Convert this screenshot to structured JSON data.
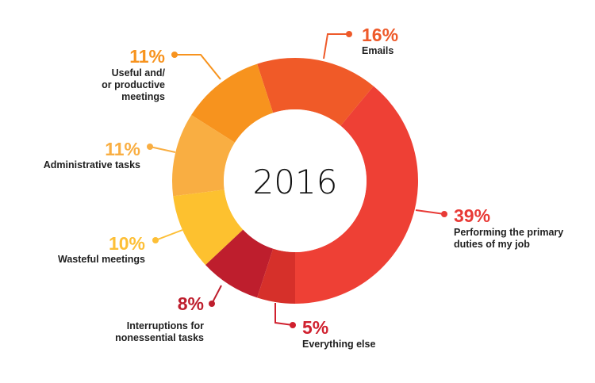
{
  "chart_data": {
    "type": "pie",
    "variant": "donut",
    "center_label": "2016",
    "start": "bottom",
    "direction": "counterclockwise",
    "slices": [
      {
        "name": "Performing the primary duties of my job",
        "value": 39,
        "label": "39%",
        "lines": [
          "Performing the primary",
          "duties of my job"
        ],
        "color": "#EE4035",
        "label_color": "#E83A36"
      },
      {
        "name": "Emails",
        "value": 16,
        "label": "16%",
        "lines": [
          "Emails"
        ],
        "color": "#F05A28",
        "label_color": "#EE5A2A"
      },
      {
        "name": "Useful and/or productive meetings",
        "value": 11,
        "label": "11%",
        "lines": [
          "Useful and/",
          "or productive",
          "meetings"
        ],
        "color": "#F7931E",
        "label_color": "#F7931E"
      },
      {
        "name": "Administrative tasks",
        "value": 11,
        "label": "11%",
        "lines": [
          "Administrative tasks"
        ],
        "color": "#F9AE42",
        "label_color": "#F9AE42"
      },
      {
        "name": "Wasteful meetings",
        "value": 10,
        "label": "10%",
        "lines": [
          "Wasteful meetings"
        ],
        "color": "#FDC12F",
        "label_color": "#FDBF36"
      },
      {
        "name": "Interruptions for nonessential tasks",
        "value": 8,
        "label": "8%",
        "lines": [
          "Interruptions for",
          "nonessential tasks"
        ],
        "color": "#BE1E2D",
        "label_color": "#BE1E2D"
      },
      {
        "name": "Everything else",
        "value": 5,
        "label": "5%",
        "lines": [
          "Everything else"
        ],
        "color": "#D6302A",
        "label_color": "#D0202E"
      }
    ]
  }
}
